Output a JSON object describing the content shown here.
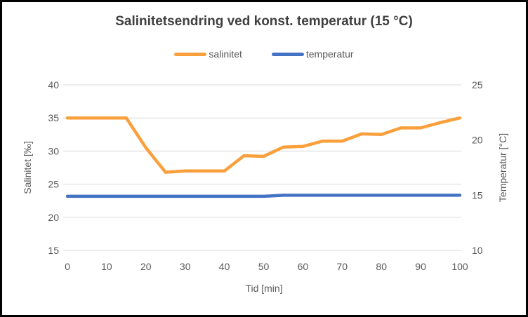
{
  "chart_data": {
    "type": "line",
    "title": "Salinitetsendring ved konst. temperatur (15 °C)",
    "legend_position": "top",
    "grid": "horizontal-only",
    "x_axis": {
      "label": "Tid [min]",
      "min": 0,
      "max": 100,
      "ticks": [
        0,
        10,
        20,
        30,
        40,
        50,
        60,
        70,
        80,
        90,
        100
      ]
    },
    "y_left": {
      "label": "Salinitet [‰]",
      "min": 15,
      "max": 40,
      "ticks": [
        15,
        20,
        25,
        30,
        35,
        40
      ]
    },
    "y_right": {
      "label": "Temperatur [°C]",
      "min": 10,
      "max": 25,
      "ticks": [
        10,
        15,
        20,
        25
      ]
    },
    "x": [
      0,
      5,
      10,
      15,
      20,
      25,
      30,
      35,
      40,
      45,
      50,
      55,
      60,
      65,
      70,
      75,
      80,
      85,
      90,
      95,
      100
    ],
    "series": [
      {
        "name": "salinitet",
        "axis": "left",
        "color": "#F9A03C",
        "values": [
          35,
          35,
          35,
          35,
          30.5,
          26.8,
          27,
          27,
          27,
          29.3,
          29.2,
          30.6,
          30.7,
          31.5,
          31.5,
          32.6,
          32.5,
          33.5,
          33.5,
          34.3,
          35
        ]
      },
      {
        "name": "temperatur",
        "axis": "right",
        "color": "#4472C4",
        "values": [
          14.9,
          14.9,
          14.9,
          14.9,
          14.9,
          14.9,
          14.9,
          14.9,
          14.9,
          14.9,
          14.9,
          15,
          15,
          15,
          15,
          15,
          15,
          15,
          15,
          15,
          15
        ]
      }
    ],
    "colors": {
      "gridline": "#D9D9D9",
      "text": "#595959",
      "title": "#404040",
      "background": "#FFFFFF",
      "border": "#000000"
    }
  }
}
